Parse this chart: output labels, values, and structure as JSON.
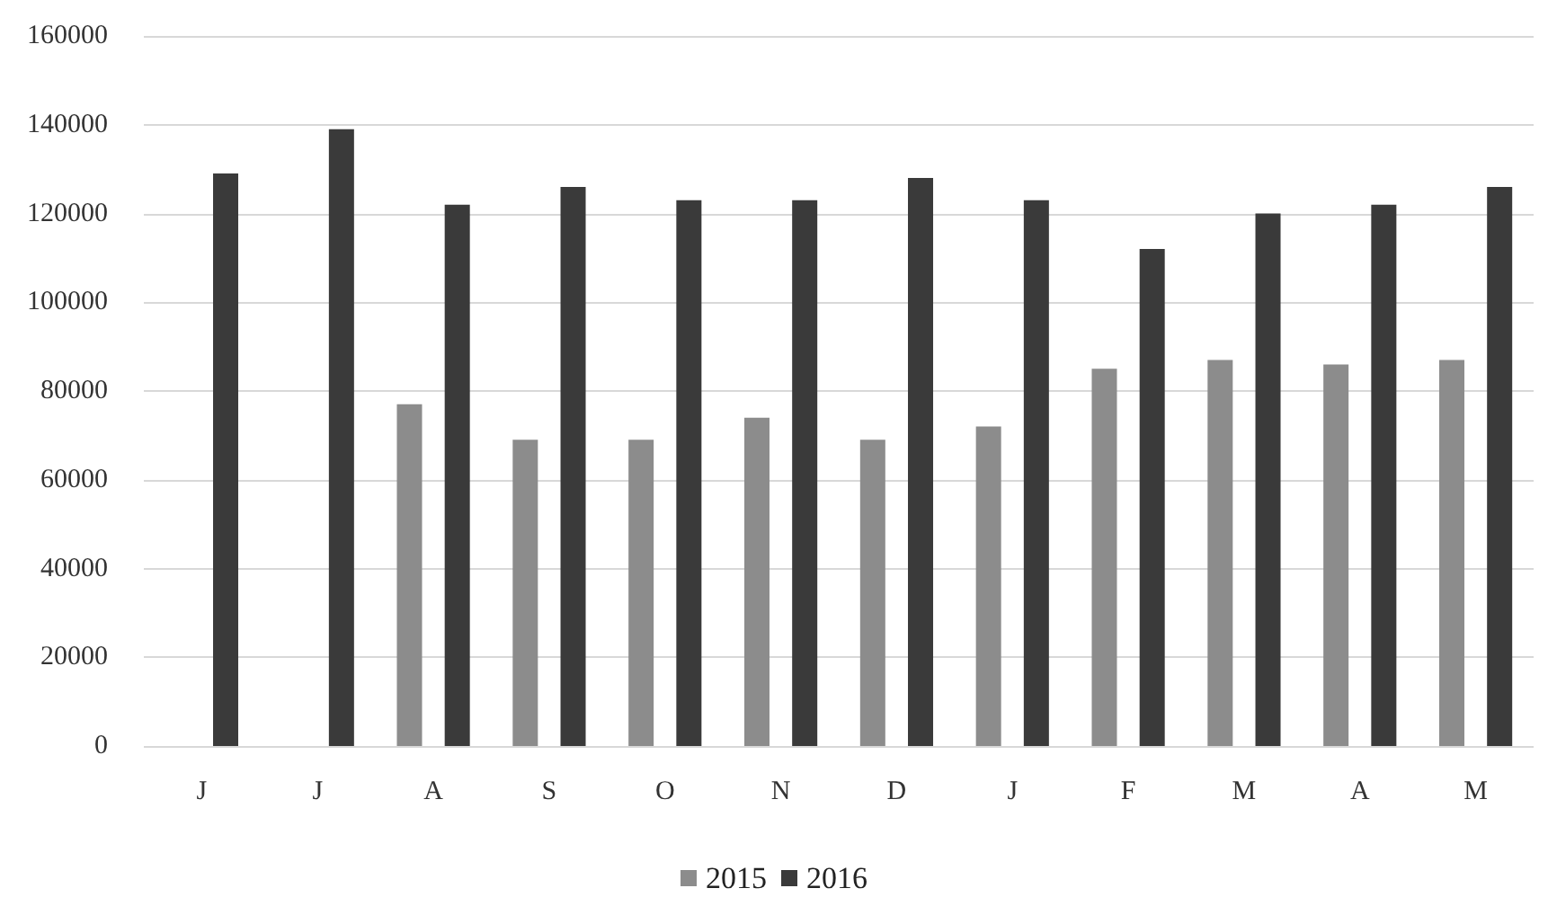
{
  "chart_data": {
    "type": "bar",
    "categories": [
      "J",
      "J",
      "A",
      "S",
      "O",
      "N",
      "D",
      "J",
      "F",
      "M",
      "A",
      "M"
    ],
    "series": [
      {
        "name": "2015",
        "color": "#8c8c8c",
        "values": [
          null,
          null,
          77000,
          69000,
          69000,
          74000,
          69000,
          72000,
          85000,
          87000,
          86000,
          87000
        ]
      },
      {
        "name": "2016",
        "color": "#3a3a3a",
        "values": [
          129000,
          139000,
          122000,
          126000,
          123000,
          123000,
          128000,
          123000,
          112000,
          120000,
          122000,
          126000
        ]
      }
    ],
    "ylim": [
      0,
      160000
    ],
    "yticks": [
      0,
      20000,
      40000,
      60000,
      80000,
      100000,
      120000,
      140000,
      160000
    ],
    "grid": "y",
    "legend": "bottom"
  }
}
